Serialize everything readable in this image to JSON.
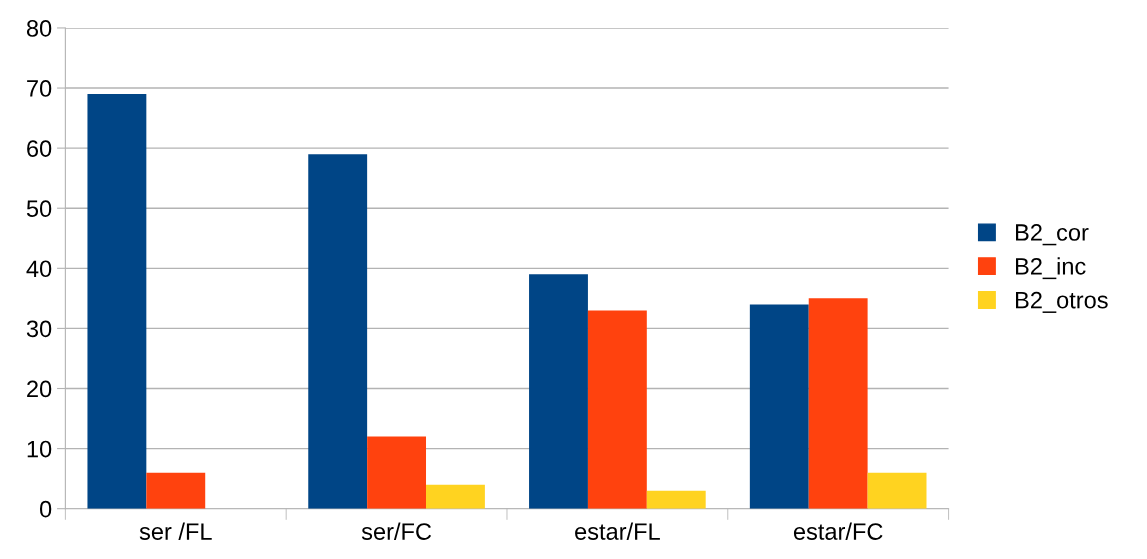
{
  "chart_data": {
    "type": "bar",
    "categories": [
      "ser /FL",
      "ser/FC",
      "estar/FL",
      "estar/FC"
    ],
    "series": [
      {
        "name": "B2_cor",
        "color": "#004586",
        "values": [
          69,
          59,
          39,
          34
        ]
      },
      {
        "name": "B2_inc",
        "color": "#ff420e",
        "values": [
          6,
          12,
          33,
          35
        ]
      },
      {
        "name": "B2_otros",
        "color": "#ffd320",
        "values": [
          0,
          4,
          3,
          6
        ]
      }
    ],
    "ylim": [
      0,
      80
    ],
    "yticks": [
      0,
      10,
      20,
      30,
      40,
      50,
      60,
      70,
      80
    ],
    "grid": "y",
    "legend": "right"
  }
}
